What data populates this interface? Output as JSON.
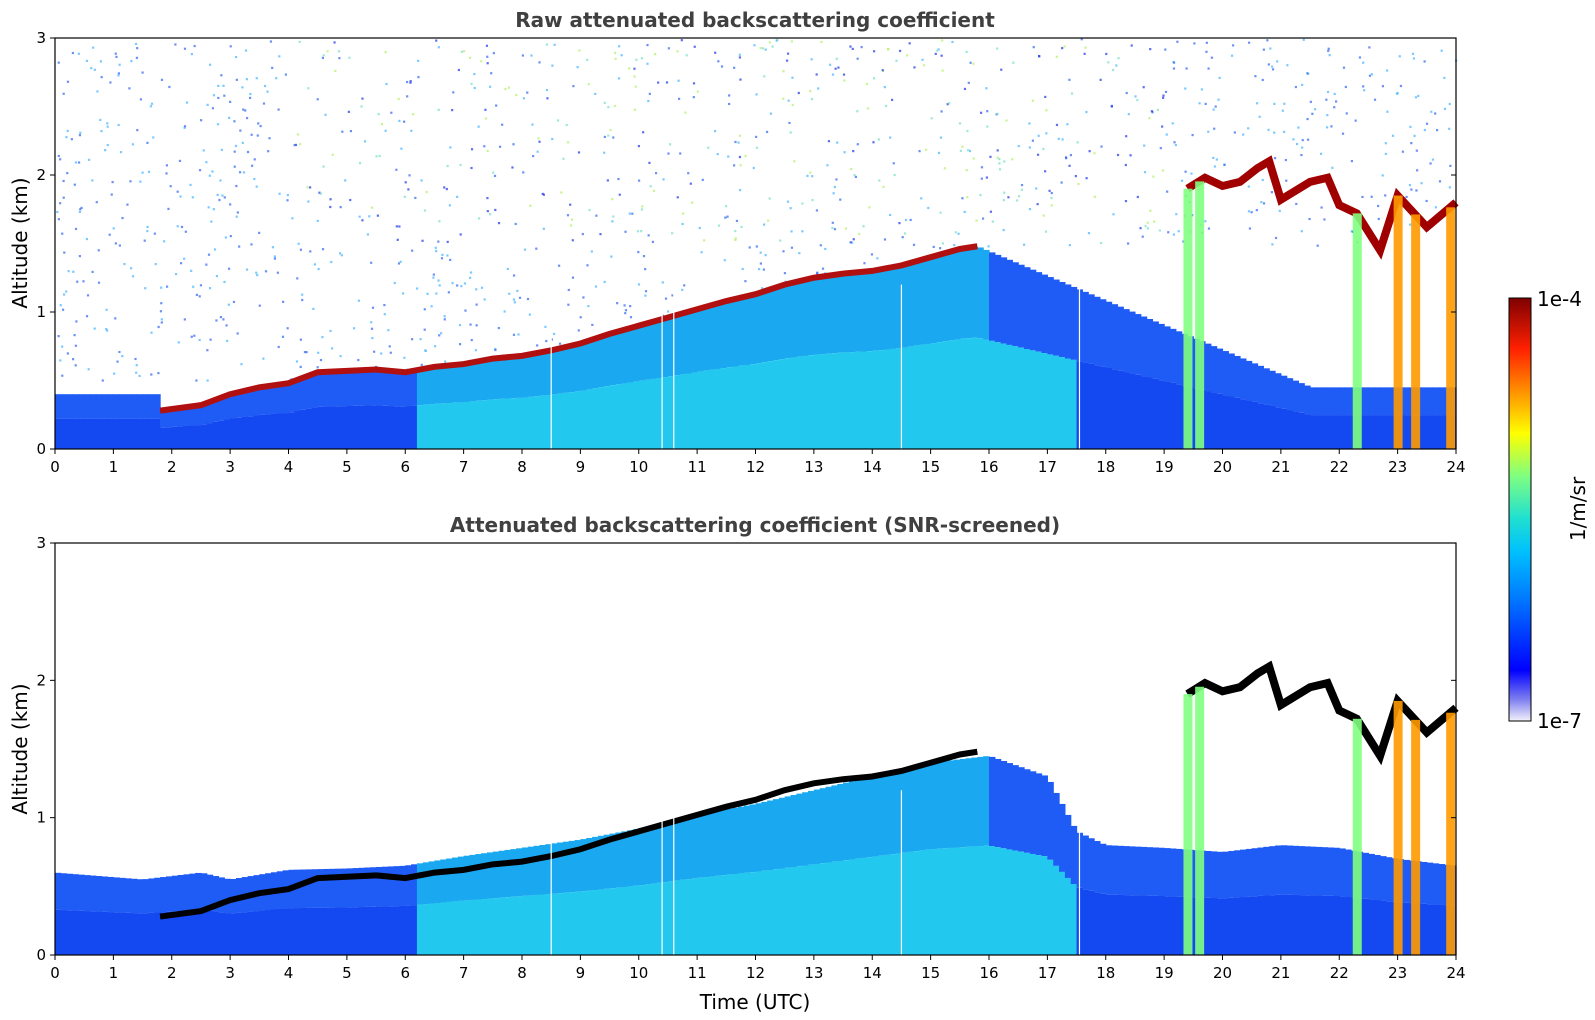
{
  "figure": {
    "colorbar": {
      "max_label": "1e-4",
      "min_label": "1e-7",
      "label": "1/m/sr",
      "colormap": "jet",
      "scale": "log"
    }
  },
  "chart_data": [
    {
      "type": "heatmap",
      "title": "Raw attenuated backscattering coefficient",
      "xlabel": "",
      "ylabel": "Altitude (km)",
      "xlim": [
        0,
        24
      ],
      "ylim": [
        0,
        3
      ],
      "x_ticks": [
        "0",
        "1",
        "2",
        "3",
        "4",
        "5",
        "6",
        "7",
        "8",
        "9",
        "10",
        "11",
        "12",
        "13",
        "14",
        "15",
        "16",
        "17",
        "18",
        "19",
        "20",
        "21",
        "22",
        "23",
        "24"
      ],
      "y_ticks": [
        "0",
        "1",
        "2",
        "3"
      ],
      "layer_top_km": [
        [
          1.8,
          0.28
        ],
        [
          2.5,
          0.32
        ],
        [
          3.0,
          0.4
        ],
        [
          3.5,
          0.45
        ],
        [
          4.0,
          0.48
        ],
        [
          4.5,
          0.56
        ],
        [
          5.0,
          0.57
        ],
        [
          5.5,
          0.58
        ],
        [
          6.0,
          0.56
        ],
        [
          6.5,
          0.6
        ],
        [
          7.0,
          0.62
        ],
        [
          7.5,
          0.66
        ],
        [
          8.0,
          0.68
        ],
        [
          8.5,
          0.72
        ],
        [
          9.0,
          0.77
        ],
        [
          9.5,
          0.84
        ],
        [
          10.0,
          0.9
        ],
        [
          10.5,
          0.96
        ],
        [
          11.0,
          1.02
        ],
        [
          11.5,
          1.08
        ],
        [
          12.0,
          1.13
        ],
        [
          12.5,
          1.2
        ],
        [
          13.0,
          1.25
        ],
        [
          13.5,
          1.28
        ],
        [
          14.0,
          1.3
        ],
        [
          14.5,
          1.34
        ],
        [
          15.0,
          1.4
        ],
        [
          15.5,
          1.46
        ],
        [
          15.8,
          1.48
        ]
      ],
      "upper_cloud_km": [
        [
          19.4,
          1.9
        ],
        [
          19.7,
          1.98
        ],
        [
          20.0,
          1.92
        ],
        [
          20.3,
          1.95
        ],
        [
          20.6,
          2.05
        ],
        [
          20.8,
          2.1
        ],
        [
          21.0,
          1.82
        ],
        [
          21.5,
          1.95
        ],
        [
          21.8,
          1.98
        ],
        [
          22.0,
          1.78
        ],
        [
          22.3,
          1.72
        ],
        [
          22.7,
          1.45
        ],
        [
          23.0,
          1.85
        ],
        [
          23.5,
          1.62
        ],
        [
          24.0,
          1.8
        ]
      ],
      "precipitation_hours": [
        19.4,
        19.6,
        22.3,
        23.0,
        23.3,
        23.9
      ],
      "dropout_hours": [
        8.5,
        10.4,
        10.6,
        14.5,
        17.55
      ]
    },
    {
      "type": "heatmap",
      "title": "Attenuated backscattering coefficient (SNR-screened)",
      "xlabel": "Time (UTC)",
      "ylabel": "Altitude (km)",
      "xlim": [
        0,
        24
      ],
      "ylim": [
        0,
        3
      ],
      "x_ticks": [
        "0",
        "1",
        "2",
        "3",
        "4",
        "5",
        "6",
        "7",
        "8",
        "9",
        "10",
        "11",
        "12",
        "13",
        "14",
        "15",
        "16",
        "17",
        "18",
        "19",
        "20",
        "21",
        "22",
        "23",
        "24"
      ],
      "y_ticks": [
        "0",
        "1",
        "2",
        "3"
      ],
      "screened_top_km": [
        [
          0.0,
          0.6
        ],
        [
          1.5,
          0.55
        ],
        [
          2.5,
          0.6
        ],
        [
          3.0,
          0.55
        ],
        [
          4.0,
          0.62
        ],
        [
          5.0,
          0.63
        ],
        [
          6.0,
          0.65
        ],
        [
          7.0,
          0.72
        ],
        [
          8.0,
          0.78
        ],
        [
          9.0,
          0.84
        ],
        [
          10.0,
          0.92
        ],
        [
          11.0,
          1.02
        ],
        [
          12.0,
          1.1
        ],
        [
          13.0,
          1.2
        ],
        [
          14.0,
          1.3
        ],
        [
          15.0,
          1.4
        ],
        [
          16.0,
          1.45
        ],
        [
          17.0,
          1.3
        ],
        [
          17.5,
          0.9
        ],
        [
          18.0,
          0.8
        ],
        [
          19.0,
          0.78
        ],
        [
          20.0,
          0.75
        ],
        [
          21.0,
          0.8
        ],
        [
          22.0,
          0.78
        ],
        [
          23.0,
          0.7
        ],
        [
          24.0,
          0.65
        ]
      ]
    }
  ]
}
